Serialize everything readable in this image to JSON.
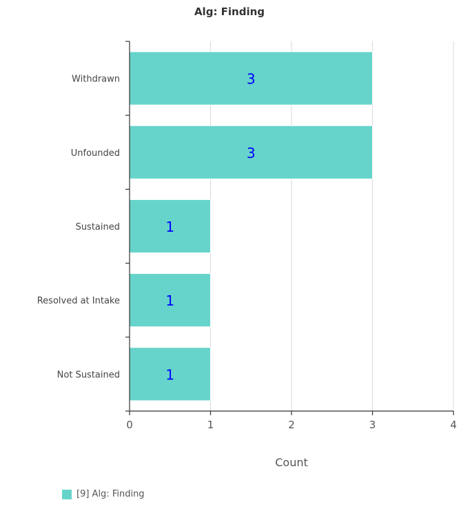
{
  "chart_data": {
    "type": "bar",
    "orientation": "horizontal",
    "title": "Alg: Finding",
    "xlabel": "Count",
    "ylabel": "",
    "categories": [
      "Withdrawn",
      "Unfounded",
      "Sustained",
      "Resolved at Intake",
      "Not Sustained"
    ],
    "series": [
      {
        "name": "[9] Alg: Finding",
        "values": [
          3,
          3,
          1,
          1,
          1
        ]
      }
    ],
    "data_labels": [
      "3",
      "3",
      "1",
      "1",
      "1"
    ],
    "xlim": [
      0,
      4
    ],
    "xticks": [
      "0",
      "1",
      "2",
      "3",
      "4"
    ],
    "grid": "vertical",
    "legend_position": "bottom-left",
    "bar_color": "#66D4CA",
    "label_color": "#0000FF"
  }
}
